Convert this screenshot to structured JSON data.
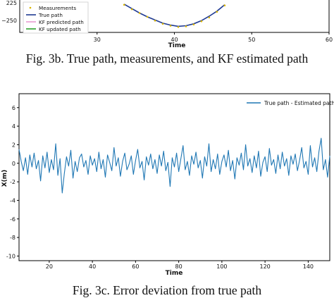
{
  "chart_data": [
    {
      "type": "line",
      "title": "",
      "xlabel": "Time",
      "ylabel": "",
      "xlim": [
        20,
        60
      ],
      "xticks": [
        "30",
        "40",
        "50",
        "60"
      ],
      "ytick_labels": [
        "225",
        "−250"
      ],
      "legend": {
        "placement": "bottom-left",
        "entries": [
          "Measurements",
          "True path",
          "KF predicted path",
          "KF updated path"
        ]
      },
      "series": [
        {
          "name": "Measurements",
          "style": "dots",
          "color": "#d9b500",
          "x": [
            33.5,
            34.5,
            35.5,
            36.5,
            37.5,
            38.5,
            39.5,
            40.5,
            41.5,
            42.5,
            43.5,
            44.5,
            45.5,
            46.5
          ],
          "y": [
            -213,
            -220,
            -226,
            -232,
            -238,
            -243,
            -246,
            -248,
            -247,
            -244,
            -239,
            -233,
            -224,
            -214
          ]
        },
        {
          "name": "True path",
          "color": "#1f3a93",
          "x": [
            33.5,
            34.5,
            35.5,
            36.5,
            37.5,
            38.5,
            39.5,
            40.5,
            41.5,
            42.5,
            43.5,
            44.5,
            45.5,
            46.5
          ],
          "y": [
            -212,
            -219,
            -226,
            -232,
            -237,
            -242,
            -245,
            -247,
            -246,
            -243,
            -238,
            -231,
            -223,
            -213
          ]
        },
        {
          "name": "KF predicted path",
          "color": "#e89bd0"
        },
        {
          "name": "KF updated path",
          "color": "#2ca02c"
        }
      ]
    },
    {
      "type": "line",
      "title": "",
      "xlabel": "Time",
      "ylabel": "X(m)",
      "xlim": [
        6,
        150
      ],
      "ylim": [
        -10.5,
        7.5
      ],
      "xticks": [
        20,
        40,
        60,
        80,
        100,
        120,
        140
      ],
      "yticks": [
        6,
        4,
        2,
        0,
        -2,
        -4,
        -6,
        -8,
        -10
      ],
      "legend": {
        "placement": "top-right",
        "entries": [
          "True path - Estimated path"
        ]
      },
      "series": [
        {
          "name": "True path - Estimated path",
          "color": "#1f77b4",
          "x": [
            6,
            7,
            8,
            9,
            10,
            11,
            12,
            13,
            14,
            15,
            16,
            17,
            18,
            19,
            20,
            21,
            22,
            23,
            24,
            25,
            26,
            27,
            28,
            29,
            30,
            31,
            32,
            33,
            34,
            35,
            36,
            37,
            38,
            39,
            40,
            41,
            42,
            43,
            44,
            45,
            46,
            47,
            48,
            49,
            50,
            51,
            52,
            53,
            54,
            55,
            56,
            57,
            58,
            59,
            60,
            61,
            62,
            63,
            64,
            65,
            66,
            67,
            68,
            69,
            70,
            71,
            72,
            73,
            74,
            75,
            76,
            77,
            78,
            79,
            80,
            81,
            82,
            83,
            84,
            85,
            86,
            87,
            88,
            89,
            90,
            91,
            92,
            93,
            94,
            95,
            96,
            97,
            98,
            99,
            100,
            101,
            102,
            103,
            104,
            105,
            106,
            107,
            108,
            109,
            110,
            111,
            112,
            113,
            114,
            115,
            116,
            117,
            118,
            119,
            120,
            121,
            122,
            123,
            124,
            125,
            126,
            127,
            128,
            129,
            130,
            131,
            132,
            133,
            134,
            135,
            136,
            137,
            138,
            139,
            140,
            141,
            142,
            143,
            144,
            145,
            146,
            147,
            148,
            149,
            150
          ],
          "y": [
            1.5,
            0.2,
            -0.8,
            0.6,
            -1.2,
            0.9,
            -0.4,
            1.1,
            -0.6,
            0.3,
            -1.9,
            0.8,
            -0.5,
            1.2,
            -1.0,
            0.4,
            -0.7,
            2.1,
            -1.3,
            0.5,
            -3.2,
            -1.1,
            0.7,
            -0.3,
            1.4,
            -1.6,
            0.2,
            -0.9,
            0.6,
            1.0,
            -0.4,
            0.3,
            -1.2,
            0.8,
            -0.2,
            0.5,
            -0.9,
            1.2,
            -0.6,
            0.4,
            -1.5,
            0.9,
            0.1,
            -0.8,
            1.7,
            -0.3,
            0.6,
            -1.4,
            0.2,
            1.1,
            -0.7,
            -0.1,
            0.8,
            -1.2,
            0.3,
            1.5,
            -0.5,
            0.2,
            -1.8,
            0.7,
            -0.2,
            1.0,
            -0.6,
            0.4,
            -1.1,
            0.9,
            -0.3,
            1.3,
            -0.8,
            0.1,
            -2.5,
            0.6,
            -0.4,
            1.1,
            -0.9,
            0.5,
            1.9,
            -0.7,
            0.2,
            -1.3,
            0.8,
            -0.1,
            1.2,
            -0.5,
            0.3,
            -1.6,
            0.7,
            -0.3,
            2.1,
            -0.9,
            0.4,
            -0.6,
            1.0,
            -1.2,
            0.2,
            0.9,
            -0.4,
            1.4,
            -0.8,
            0.3,
            -1.7,
            0.6,
            -0.2,
            1.1,
            -0.7,
            2.0,
            -0.3,
            0.5,
            -1.0,
            0.8,
            -0.5,
            1.3,
            -1.4,
            0.1,
            0.7,
            -0.9,
            1.6,
            -0.2,
            0.4,
            -1.1,
            0.9,
            -0.6,
            1.2,
            -0.3,
            0.5,
            -1.3,
            0.8,
            -0.1,
            1.0,
            -0.8,
            0.3,
            1.7,
            -0.5,
            0.2,
            -1.2,
            1.9,
            -0.4,
            0.6,
            -0.9,
            1.3,
            2.7,
            -0.7,
            0.4,
            -1.5,
            0.8
          ]
        }
      ]
    }
  ],
  "captions": {
    "fig3b": "Fig. 3b.  True path, measurements, and KF estimated path",
    "fig3c": "Fig. 3c.  Error deviation from true path"
  }
}
